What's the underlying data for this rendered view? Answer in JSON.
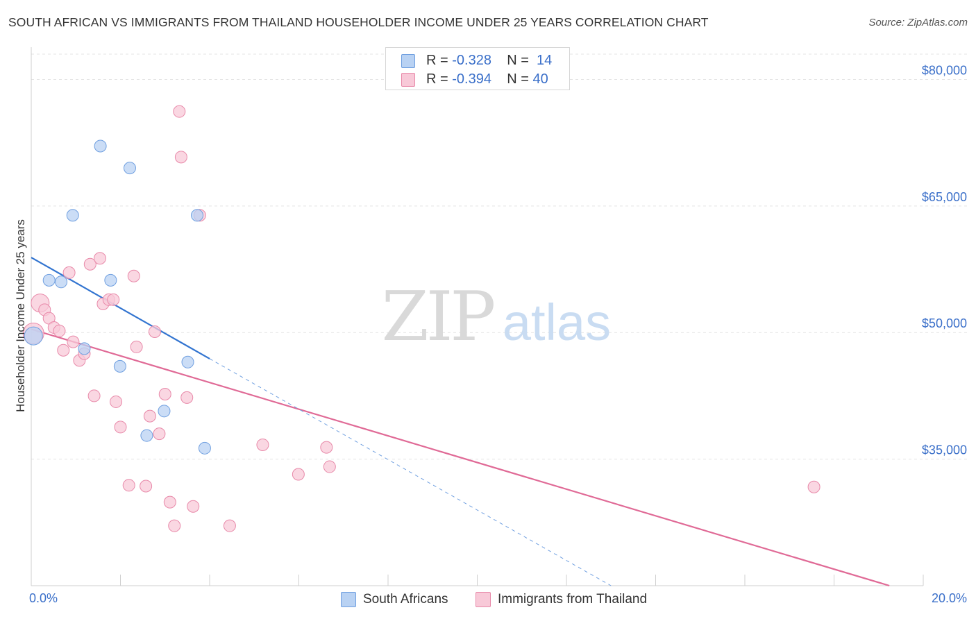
{
  "title": "SOUTH AFRICAN VS IMMIGRANTS FROM THAILAND HOUSEHOLDER INCOME UNDER 25 YEARS CORRELATION CHART",
  "source": "Source: ZipAtlas.com",
  "colors": {
    "blue": "#6f9fe0",
    "blue_fill": "#b9d2f3",
    "blue_line": "#3274d0",
    "pink": "#e889a9",
    "pink_fill": "#f8c9d8",
    "pink_line": "#e06a96",
    "axis_text": "#3a6fc9",
    "grid": "#e3e3e3"
  },
  "legend_top": {
    "rows": [
      {
        "r_label": "R =",
        "r_value": "-0.328",
        "n_label": "N =",
        "n_value": "14"
      },
      {
        "r_label": "R =",
        "r_value": "-0.394",
        "n_label": "N =",
        "n_value": "40"
      }
    ]
  },
  "legend_bottom": [
    "South Africans",
    "Immigrants from Thailand"
  ],
  "watermark": {
    "zip": "ZIP",
    "atlas": "atlas"
  },
  "chart_data": {
    "type": "scatter",
    "title": "SOUTH AFRICAN VS IMMIGRANTS FROM THAILAND HOUSEHOLDER INCOME UNDER 25 YEARS CORRELATION CHART",
    "xlabel": "",
    "ylabel": "Householder Income Under 25 years",
    "xlim": [
      0,
      20
    ],
    "ylim": [
      20000,
      83000
    ],
    "x_tick_labels": [
      "0.0%",
      "20.0%"
    ],
    "y_ticks": [
      35000,
      50000,
      65000,
      80000
    ],
    "y_tick_labels": [
      "$35,000",
      "$50,000",
      "$65,000",
      "$80,000"
    ],
    "series": [
      {
        "name": "South Africans",
        "r": -0.328,
        "n": 14,
        "points": [
          [
            0.05,
            49600
          ],
          [
            0.4,
            56200
          ],
          [
            0.67,
            56000
          ],
          [
            0.93,
            63900
          ],
          [
            1.19,
            48100
          ],
          [
            1.55,
            72100
          ],
          [
            1.78,
            56200
          ],
          [
            1.99,
            46000
          ],
          [
            2.21,
            69500
          ],
          [
            2.59,
            37800
          ],
          [
            2.98,
            40700
          ],
          [
            3.51,
            46500
          ],
          [
            3.72,
            63900
          ],
          [
            3.89,
            36300
          ]
        ],
        "trend": {
          "x0": 0,
          "y0": 58900,
          "x1": 4.0,
          "y1": 46900
        },
        "trend_dashed_extension": {
          "x0": 4.0,
          "y0": 46900,
          "x1": 13.0,
          "y1": 20000
        }
      },
      {
        "name": "Immigrants from Thailand",
        "r": -0.394,
        "n": 40,
        "points": [
          [
            0.05,
            49900
          ],
          [
            0.2,
            53500
          ],
          [
            0.3,
            52700
          ],
          [
            0.4,
            51700
          ],
          [
            0.51,
            50600
          ],
          [
            0.63,
            50200
          ],
          [
            0.72,
            47900
          ],
          [
            0.85,
            57100
          ],
          [
            0.94,
            48900
          ],
          [
            1.08,
            46700
          ],
          [
            1.19,
            47500
          ],
          [
            1.32,
            58100
          ],
          [
            1.41,
            42500
          ],
          [
            1.54,
            58800
          ],
          [
            1.61,
            53400
          ],
          [
            1.74,
            53900
          ],
          [
            1.84,
            53900
          ],
          [
            1.9,
            41800
          ],
          [
            2.0,
            38800
          ],
          [
            2.19,
            31900
          ],
          [
            2.3,
            56700
          ],
          [
            2.36,
            48300
          ],
          [
            2.57,
            31800
          ],
          [
            2.66,
            40100
          ],
          [
            2.77,
            50100
          ],
          [
            2.87,
            38000
          ],
          [
            3.0,
            42700
          ],
          [
            3.11,
            29900
          ],
          [
            3.21,
            27100
          ],
          [
            3.32,
            76200
          ],
          [
            3.36,
            70800
          ],
          [
            3.49,
            42300
          ],
          [
            3.63,
            29400
          ],
          [
            3.78,
            63900
          ],
          [
            4.45,
            27100
          ],
          [
            5.19,
            36700
          ],
          [
            5.99,
            33200
          ],
          [
            6.62,
            36400
          ],
          [
            6.69,
            34100
          ],
          [
            17.55,
            31700
          ]
        ],
        "trend": {
          "x0": 0,
          "y0": 50400,
          "x1": 19.24,
          "y1": 20000
        }
      }
    ]
  }
}
